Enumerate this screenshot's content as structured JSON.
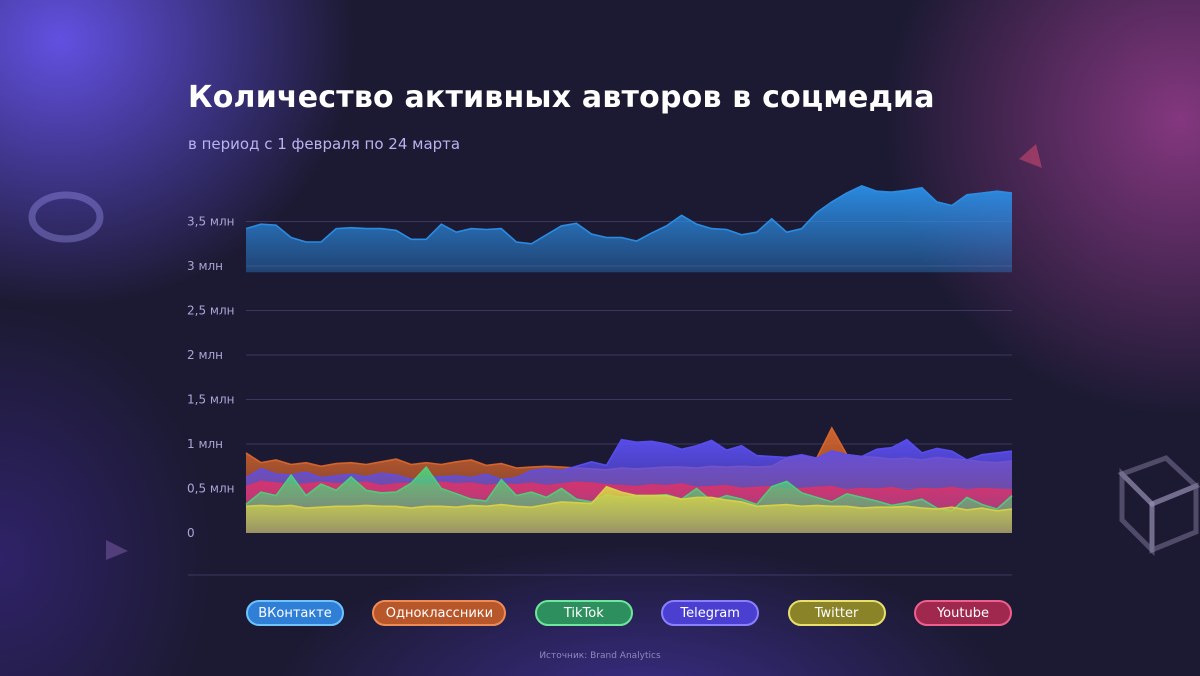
{
  "title": "Количество активных авторов в соцмедиа",
  "subtitle": "в период с 1 февраля по 24 марта",
  "source": "Источник: Brand Analytics",
  "colors": {
    "vk": "#2b8fe8",
    "ok": "#d9662c",
    "tiktok": "#4fcf7a",
    "telegram": "#5a4ef0",
    "twitter": "#d8d248",
    "youtube": "#d8336a"
  },
  "chart_data": {
    "type": "area",
    "title": "Количество активных авторов в соцмедиа",
    "subtitle": "в период с 1 февраля по 24 марта",
    "x_start": "1 февраля",
    "x_end": "24 марта",
    "points_per_series": 52,
    "ylim": [
      0,
      4.0
    ],
    "yticks": [
      0,
      0.5,
      1,
      1.5,
      2,
      2.5,
      3,
      3.5
    ],
    "ytick_labels": [
      "0",
      "0,5 млн",
      "1 млн",
      "1,5 млн",
      "2 млн",
      "2,5 млн",
      "3 млн",
      "3,5 млн"
    ],
    "unit": "млн",
    "series": [
      {
        "key": "ok",
        "name": "Одноклассники",
        "color": "#d9662c",
        "values": [
          0.9,
          0.79,
          0.82,
          0.77,
          0.79,
          0.75,
          0.78,
          0.79,
          0.77,
          0.8,
          0.83,
          0.77,
          0.79,
          0.77,
          0.8,
          0.82,
          0.76,
          0.78,
          0.73,
          0.74,
          0.75,
          0.74,
          0.73,
          0.72,
          0.71,
          0.73,
          0.72,
          0.73,
          0.74,
          0.74,
          0.73,
          0.75,
          0.74,
          0.75,
          0.74,
          0.75,
          0.84,
          0.87,
          0.84,
          1.18,
          0.88,
          0.86,
          0.85,
          0.83,
          0.84,
          0.82,
          0.85,
          0.83,
          0.82,
          0.8,
          0.79,
          0.81
        ]
      },
      {
        "key": "telegram",
        "name": "Telegram",
        "color": "#5a4ef0",
        "values": [
          0.62,
          0.72,
          0.66,
          0.65,
          0.68,
          0.62,
          0.64,
          0.66,
          0.63,
          0.67,
          0.65,
          0.6,
          0.62,
          0.63,
          0.64,
          0.62,
          0.66,
          0.6,
          0.62,
          0.7,
          0.72,
          0.7,
          0.75,
          0.8,
          0.76,
          1.05,
          1.02,
          1.03,
          1.0,
          0.94,
          0.98,
          1.04,
          0.93,
          0.98,
          0.87,
          0.86,
          0.85,
          0.88,
          0.84,
          0.92,
          0.88,
          0.86,
          0.94,
          0.96,
          1.05,
          0.9,
          0.95,
          0.92,
          0.82,
          0.88,
          0.9,
          0.92
        ]
      },
      {
        "key": "youtube",
        "name": "Youtube",
        "color": "#d8336a",
        "values": [
          0.52,
          0.58,
          0.56,
          0.54,
          0.55,
          0.57,
          0.55,
          0.56,
          0.57,
          0.53,
          0.55,
          0.56,
          0.54,
          0.57,
          0.55,
          0.56,
          0.53,
          0.55,
          0.54,
          0.56,
          0.53,
          0.55,
          0.57,
          0.56,
          0.54,
          0.53,
          0.52,
          0.54,
          0.53,
          0.55,
          0.51,
          0.52,
          0.53,
          0.5,
          0.51,
          0.52,
          0.49,
          0.5,
          0.51,
          0.52,
          0.48,
          0.5,
          0.49,
          0.51,
          0.47,
          0.5,
          0.49,
          0.51,
          0.48,
          0.5,
          0.49,
          0.48
        ]
      },
      {
        "key": "tiktok",
        "name": "TikTok",
        "color": "#4fcf7a",
        "values": [
          0.32,
          0.46,
          0.42,
          0.65,
          0.42,
          0.55,
          0.48,
          0.63,
          0.48,
          0.45,
          0.46,
          0.56,
          0.74,
          0.5,
          0.44,
          0.38,
          0.36,
          0.6,
          0.42,
          0.46,
          0.4,
          0.5,
          0.38,
          0.35,
          0.43,
          0.4,
          0.42,
          0.42,
          0.43,
          0.38,
          0.5,
          0.36,
          0.42,
          0.38,
          0.32,
          0.52,
          0.58,
          0.45,
          0.4,
          0.35,
          0.44,
          0.4,
          0.36,
          0.31,
          0.34,
          0.38,
          0.28,
          0.25,
          0.4,
          0.32,
          0.27,
          0.42
        ]
      },
      {
        "key": "vk",
        "name": "ВКонтакте",
        "color": "#2b8fe8",
        "values": [
          3.42,
          3.47,
          3.46,
          3.32,
          3.27,
          3.27,
          3.42,
          3.43,
          3.42,
          3.42,
          3.4,
          3.3,
          3.3,
          3.47,
          3.38,
          3.42,
          3.41,
          3.42,
          3.27,
          3.25,
          3.35,
          3.45,
          3.48,
          3.36,
          3.32,
          3.32,
          3.28,
          3.37,
          3.45,
          3.57,
          3.47,
          3.42,
          3.41,
          3.35,
          3.38,
          3.53,
          3.38,
          3.42,
          3.6,
          3.72,
          3.82,
          3.9,
          3.84,
          3.83,
          3.85,
          3.88,
          3.72,
          3.68,
          3.8,
          3.82,
          3.84,
          3.82
        ]
      },
      {
        "key": "twitter",
        "name": "Twitter",
        "color": "#d8d248",
        "values": [
          0.3,
          0.31,
          0.3,
          0.31,
          0.28,
          0.29,
          0.3,
          0.3,
          0.31,
          0.3,
          0.3,
          0.28,
          0.3,
          0.3,
          0.29,
          0.31,
          0.3,
          0.32,
          0.3,
          0.29,
          0.32,
          0.35,
          0.34,
          0.33,
          0.52,
          0.46,
          0.42,
          0.42,
          0.42,
          0.38,
          0.4,
          0.4,
          0.37,
          0.35,
          0.3,
          0.31,
          0.32,
          0.3,
          0.31,
          0.3,
          0.3,
          0.28,
          0.29,
          0.29,
          0.3,
          0.28,
          0.27,
          0.29,
          0.26,
          0.28,
          0.25,
          0.27
        ]
      }
    ]
  },
  "legend": [
    {
      "key": "vk",
      "label": "ВКонтакте",
      "fill": "#2f7fd6",
      "border": "#6ec3ff"
    },
    {
      "key": "ok",
      "label": "Одноклассники",
      "fill": "#b8572a",
      "border": "#f08a55"
    },
    {
      "key": "tiktok",
      "label": "TikTok",
      "fill": "#2e8f5e",
      "border": "#6ee69c"
    },
    {
      "key": "telegram",
      "label": "Telegram",
      "fill": "#4a3fd0",
      "border": "#8a80ff"
    },
    {
      "key": "twitter",
      "label": "Twitter",
      "fill": "#8a8328",
      "border": "#e8e06a"
    },
    {
      "key": "youtube",
      "label": "Youtube",
      "fill": "#a0284e",
      "border": "#ef5f8d"
    }
  ]
}
